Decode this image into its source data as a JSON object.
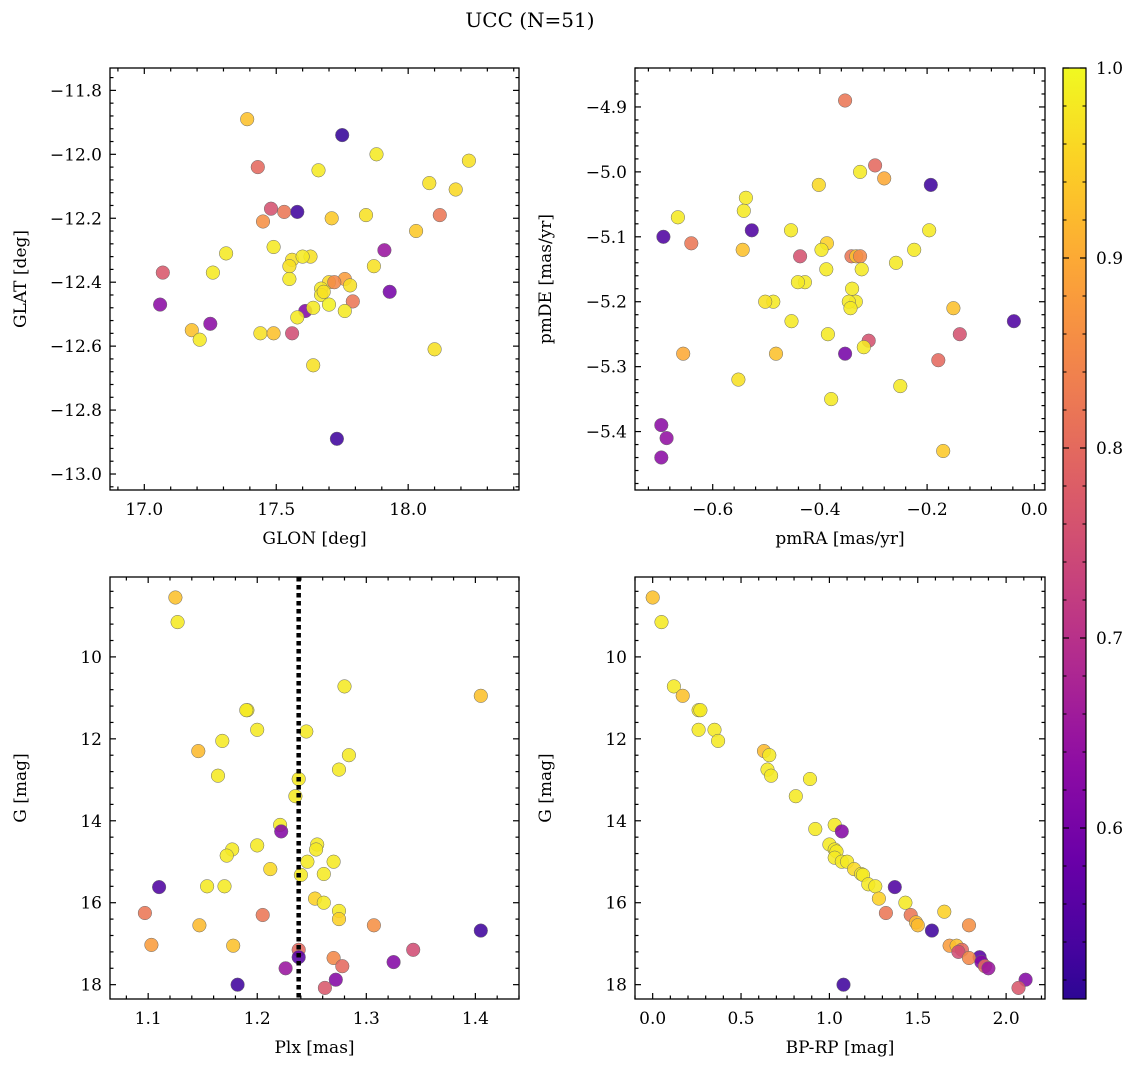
{
  "figure": {
    "title": "UCC (N=51)"
  },
  "colorbar": {
    "colormap": "plasma",
    "range": [
      0.51,
      1.0
    ],
    "ticks": [
      0.6,
      0.7,
      0.8,
      0.9,
      1.0
    ],
    "tick_labels": [
      "0.6",
      "0.7",
      "0.8",
      "0.9",
      "1.0"
    ]
  },
  "chart_data": [
    {
      "type": "scatter",
      "id": "glon-glat",
      "xlabel": "GLON [deg]",
      "ylabel": "GLAT [deg]",
      "xlim": [
        16.87,
        18.42
      ],
      "ylim": [
        -13.05,
        -11.73
      ],
      "y_inverted": false,
      "xticks": [
        17.0,
        17.5,
        18.0
      ],
      "xtick_labels": [
        "17.0",
        "17.5",
        "18.0"
      ],
      "yticks": [
        -11.8,
        -12.0,
        -12.2,
        -12.4,
        -12.6,
        -12.8,
        -13.0
      ],
      "ytick_labels": [
        "−11.8",
        "−12.0",
        "−12.2",
        "−12.4",
        "−12.6",
        "−12.8",
        "−13.0"
      ],
      "points": [
        [
          17.39,
          -11.89,
          0.93
        ],
        [
          17.75,
          -11.94,
          0.52
        ],
        [
          17.88,
          -12.0,
          0.98
        ],
        [
          17.43,
          -12.04,
          0.8
        ],
        [
          17.66,
          -12.05,
          0.98
        ],
        [
          18.23,
          -12.02,
          0.97
        ],
        [
          18.08,
          -12.09,
          0.97
        ],
        [
          18.18,
          -12.11,
          0.96
        ],
        [
          17.48,
          -12.17,
          0.76
        ],
        [
          17.53,
          -12.18,
          0.82
        ],
        [
          17.58,
          -12.18,
          0.53
        ],
        [
          17.45,
          -12.21,
          0.86
        ],
        [
          17.71,
          -12.2,
          0.94
        ],
        [
          17.84,
          -12.19,
          0.97
        ],
        [
          18.12,
          -12.19,
          0.82
        ],
        [
          18.03,
          -12.24,
          0.94
        ],
        [
          17.49,
          -12.29,
          0.98
        ],
        [
          17.63,
          -12.32,
          0.97
        ],
        [
          17.31,
          -12.31,
          0.98
        ],
        [
          17.91,
          -12.3,
          0.65
        ],
        [
          17.56,
          -12.33,
          0.97
        ],
        [
          17.55,
          -12.35,
          0.97
        ],
        [
          17.87,
          -12.35,
          0.97
        ],
        [
          17.07,
          -12.37,
          0.77
        ],
        [
          17.26,
          -12.37,
          0.98
        ],
        [
          17.7,
          -12.4,
          0.96
        ],
        [
          17.76,
          -12.39,
          0.88
        ],
        [
          17.72,
          -12.4,
          0.85
        ],
        [
          17.55,
          -12.39,
          0.98
        ],
        [
          17.67,
          -12.42,
          0.98
        ],
        [
          17.67,
          -12.44,
          0.98
        ],
        [
          17.93,
          -12.43,
          0.6
        ],
        [
          17.78,
          -12.41,
          0.97
        ],
        [
          17.06,
          -12.47,
          0.63
        ],
        [
          17.7,
          -12.47,
          0.99
        ],
        [
          17.79,
          -12.46,
          0.82
        ],
        [
          17.61,
          -12.49,
          0.62
        ],
        [
          17.64,
          -12.48,
          0.98
        ],
        [
          17.76,
          -12.49,
          0.98
        ],
        [
          17.58,
          -12.51,
          0.98
        ],
        [
          17.18,
          -12.55,
          0.93
        ],
        [
          17.44,
          -12.56,
          0.97
        ],
        [
          17.49,
          -12.56,
          0.93
        ],
        [
          17.56,
          -12.56,
          0.75
        ],
        [
          17.25,
          -12.53,
          0.63
        ],
        [
          17.21,
          -12.58,
          0.98
        ],
        [
          18.1,
          -12.61,
          0.97
        ],
        [
          17.64,
          -12.66,
          0.97
        ],
        [
          17.73,
          -12.89,
          0.53
        ],
        [
          17.68,
          -12.43,
          0.97
        ],
        [
          17.6,
          -12.32,
          0.98
        ]
      ]
    },
    {
      "type": "scatter",
      "id": "pmra-pmde",
      "xlabel": "pmRA [mas/yr]",
      "ylabel": "pmDE [mas/yr]",
      "xlim": [
        -0.745,
        0.02
      ],
      "ylim": [
        -5.49,
        -4.84
      ],
      "y_inverted": false,
      "xticks": [
        -0.6,
        -0.4,
        -0.2,
        0.0
      ],
      "xtick_labels": [
        "−0.6",
        "−0.4",
        "−0.2",
        "0.0"
      ],
      "yticks": [
        -4.9,
        -5.0,
        -5.1,
        -5.2,
        -5.3,
        -5.4
      ],
      "ytick_labels": [
        "−4.9",
        "−5.0",
        "−5.1",
        "−5.2",
        "−5.3",
        "−5.4"
      ],
      "points": [
        [
          -0.353,
          -4.89,
          0.82
        ],
        [
          -0.297,
          -4.99,
          0.8
        ],
        [
          -0.325,
          -5.0,
          0.98
        ],
        [
          -0.28,
          -5.01,
          0.9
        ],
        [
          -0.193,
          -5.02,
          0.53
        ],
        [
          -0.402,
          -5.02,
          0.96
        ],
        [
          -0.538,
          -5.04,
          0.98
        ],
        [
          -0.542,
          -5.06,
          0.98
        ],
        [
          -0.665,
          -5.07,
          0.98
        ],
        [
          -0.527,
          -5.09,
          0.55
        ],
        [
          -0.454,
          -5.09,
          0.98
        ],
        [
          -0.692,
          -5.1,
          0.55
        ],
        [
          -0.196,
          -5.09,
          0.98
        ],
        [
          -0.64,
          -5.11,
          0.82
        ],
        [
          -0.387,
          -5.11,
          0.95
        ],
        [
          -0.397,
          -5.12,
          0.98
        ],
        [
          -0.544,
          -5.12,
          0.93
        ],
        [
          -0.224,
          -5.12,
          0.98
        ],
        [
          -0.341,
          -5.13,
          0.82
        ],
        [
          -0.332,
          -5.13,
          0.93
        ],
        [
          -0.325,
          -5.13,
          0.85
        ],
        [
          -0.437,
          -5.13,
          0.76
        ],
        [
          -0.258,
          -5.14,
          0.98
        ],
        [
          -0.322,
          -5.15,
          0.98
        ],
        [
          -0.388,
          -5.15,
          0.98
        ],
        [
          -0.428,
          -5.17,
          0.98
        ],
        [
          -0.441,
          -5.17,
          0.98
        ],
        [
          -0.34,
          -5.18,
          0.98
        ],
        [
          -0.333,
          -5.2,
          0.98
        ],
        [
          -0.346,
          -5.2,
          0.98
        ],
        [
          -0.343,
          -5.21,
          0.98
        ],
        [
          -0.487,
          -5.2,
          0.98
        ],
        [
          -0.502,
          -5.2,
          0.97
        ],
        [
          -0.151,
          -5.21,
          0.93
        ],
        [
          -0.038,
          -5.23,
          0.55
        ],
        [
          -0.453,
          -5.23,
          0.98
        ],
        [
          -0.139,
          -5.25,
          0.76
        ],
        [
          -0.385,
          -5.25,
          0.98
        ],
        [
          -0.309,
          -5.26,
          0.76
        ],
        [
          -0.318,
          -5.27,
          0.98
        ],
        [
          -0.353,
          -5.28,
          0.6
        ],
        [
          -0.482,
          -5.28,
          0.93
        ],
        [
          -0.655,
          -5.28,
          0.9
        ],
        [
          -0.179,
          -5.29,
          0.8
        ],
        [
          -0.25,
          -5.33,
          0.98
        ],
        [
          -0.552,
          -5.32,
          0.97
        ],
        [
          -0.379,
          -5.35,
          0.98
        ],
        [
          -0.696,
          -5.39,
          0.63
        ],
        [
          -0.686,
          -5.41,
          0.64
        ],
        [
          -0.696,
          -5.44,
          0.63
        ],
        [
          -0.17,
          -5.43,
          0.94
        ]
      ]
    },
    {
      "type": "scatter",
      "id": "plx-g",
      "xlabel": "Plx [mas]",
      "ylabel": "G [mag]",
      "xlim": [
        1.065,
        1.44
      ],
      "ylim": [
        18.35,
        8.05
      ],
      "y_inverted": true,
      "reference_line_x": 1.238,
      "xticks": [
        1.1,
        1.2,
        1.3,
        1.4
      ],
      "xtick_labels": [
        "1.1",
        "1.2",
        "1.3",
        "1.4"
      ],
      "yticks": [
        10,
        12,
        14,
        16,
        18
      ],
      "ytick_labels": [
        "10",
        "12",
        "14",
        "16",
        "18"
      ],
      "points": [
        [
          1.125,
          8.55,
          0.93
        ],
        [
          1.127,
          9.15,
          0.98
        ],
        [
          1.405,
          10.95,
          0.93
        ],
        [
          1.28,
          10.72,
          0.98
        ],
        [
          1.191,
          11.3,
          0.98
        ],
        [
          1.2,
          11.78,
          0.98
        ],
        [
          1.245,
          11.82,
          0.98
        ],
        [
          1.146,
          12.3,
          0.92
        ],
        [
          1.168,
          12.05,
          0.98
        ],
        [
          1.284,
          12.4,
          0.98
        ],
        [
          1.275,
          12.75,
          0.98
        ],
        [
          1.164,
          12.9,
          0.98
        ],
        [
          1.238,
          12.98,
          0.98
        ],
        [
          1.235,
          13.4,
          0.98
        ],
        [
          1.221,
          14.1,
          0.98
        ],
        [
          1.222,
          14.26,
          0.62
        ],
        [
          1.255,
          14.58,
          0.98
        ],
        [
          1.2,
          14.6,
          0.98
        ],
        [
          1.254,
          14.7,
          0.98
        ],
        [
          1.177,
          14.7,
          0.98
        ],
        [
          1.172,
          14.85,
          0.98
        ],
        [
          1.246,
          15.0,
          0.98
        ],
        [
          1.27,
          15.0,
          0.98
        ],
        [
          1.212,
          15.18,
          0.96
        ],
        [
          1.24,
          15.32,
          0.98
        ],
        [
          1.261,
          15.3,
          0.98
        ],
        [
          1.154,
          15.6,
          0.98
        ],
        [
          1.17,
          15.6,
          0.98
        ],
        [
          1.11,
          15.62,
          0.55
        ],
        [
          1.253,
          15.9,
          0.95
        ],
        [
          1.261,
          16.0,
          0.98
        ],
        [
          1.275,
          16.2,
          0.98
        ],
        [
          1.275,
          16.4,
          0.95
        ],
        [
          1.097,
          16.25,
          0.82
        ],
        [
          1.205,
          16.3,
          0.82
        ],
        [
          1.147,
          16.55,
          0.92
        ],
        [
          1.307,
          16.55,
          0.86
        ],
        [
          1.405,
          16.68,
          0.53
        ],
        [
          1.103,
          17.03,
          0.88
        ],
        [
          1.178,
          17.05,
          0.93
        ],
        [
          1.238,
          17.15,
          0.8
        ],
        [
          1.343,
          17.15,
          0.75
        ],
        [
          1.238,
          17.33,
          0.56
        ],
        [
          1.27,
          17.35,
          0.85
        ],
        [
          1.325,
          17.45,
          0.62
        ],
        [
          1.278,
          17.55,
          0.8
        ],
        [
          1.226,
          17.6,
          0.65
        ],
        [
          1.272,
          17.88,
          0.62
        ],
        [
          1.182,
          18.0,
          0.53
        ],
        [
          1.262,
          18.08,
          0.77
        ],
        [
          1.19,
          11.3,
          0.98
        ]
      ]
    },
    {
      "type": "scatter",
      "id": "bprp-g",
      "xlabel": "BP-RP [mag]",
      "ylabel": "G [mag]",
      "xlim": [
        -0.1,
        2.22
      ],
      "ylim": [
        18.35,
        8.05
      ],
      "y_inverted": true,
      "xticks": [
        0.0,
        0.5,
        1.0,
        1.5,
        2.0
      ],
      "xtick_labels": [
        "0.0",
        "0.5",
        "1.0",
        "1.5",
        "2.0"
      ],
      "yticks": [
        10,
        12,
        14,
        16,
        18
      ],
      "ytick_labels": [
        "10",
        "12",
        "14",
        "16",
        "18"
      ],
      "points": [
        [
          0.0,
          8.55,
          0.93
        ],
        [
          0.05,
          9.15,
          0.98
        ],
        [
          0.12,
          10.72,
          0.98
        ],
        [
          0.17,
          10.95,
          0.93
        ],
        [
          0.26,
          11.3,
          0.98
        ],
        [
          0.26,
          11.78,
          0.98
        ],
        [
          0.35,
          11.78,
          0.98
        ],
        [
          0.37,
          12.05,
          0.98
        ],
        [
          0.63,
          12.3,
          0.92
        ],
        [
          0.66,
          12.4,
          0.98
        ],
        [
          0.65,
          12.75,
          0.98
        ],
        [
          0.67,
          12.9,
          0.98
        ],
        [
          0.89,
          12.98,
          0.98
        ],
        [
          0.81,
          13.4,
          0.98
        ],
        [
          0.92,
          14.2,
          0.98
        ],
        [
          1.03,
          14.1,
          0.98
        ],
        [
          1.07,
          14.26,
          0.62
        ],
        [
          1.0,
          14.58,
          0.98
        ],
        [
          1.03,
          14.7,
          0.98
        ],
        [
          1.04,
          14.75,
          0.98
        ],
        [
          1.03,
          14.9,
          0.98
        ],
        [
          1.07,
          15.0,
          0.98
        ],
        [
          1.1,
          15.0,
          0.98
        ],
        [
          1.14,
          15.18,
          0.96
        ],
        [
          1.18,
          15.3,
          0.98
        ],
        [
          1.19,
          15.32,
          0.98
        ],
        [
          1.22,
          15.55,
          0.98
        ],
        [
          1.26,
          15.6,
          0.98
        ],
        [
          1.37,
          15.62,
          0.55
        ],
        [
          1.28,
          15.9,
          0.95
        ],
        [
          1.43,
          16.0,
          0.98
        ],
        [
          1.32,
          16.25,
          0.82
        ],
        [
          1.65,
          16.22,
          0.95
        ],
        [
          1.46,
          16.3,
          0.82
        ],
        [
          1.49,
          16.48,
          0.92
        ],
        [
          1.5,
          16.55,
          0.92
        ],
        [
          1.79,
          16.55,
          0.86
        ],
        [
          1.58,
          16.68,
          0.53
        ],
        [
          1.68,
          17.05,
          0.88
        ],
        [
          1.72,
          17.05,
          0.93
        ],
        [
          1.75,
          17.15,
          0.8
        ],
        [
          1.73,
          17.2,
          0.75
        ],
        [
          1.85,
          17.33,
          0.56
        ],
        [
          1.79,
          17.35,
          0.85
        ],
        [
          1.86,
          17.45,
          0.62
        ],
        [
          1.88,
          17.55,
          0.8
        ],
        [
          1.9,
          17.6,
          0.65
        ],
        [
          2.11,
          17.88,
          0.62
        ],
        [
          1.08,
          18.0,
          0.53
        ],
        [
          2.07,
          18.08,
          0.77
        ],
        [
          0.27,
          11.3,
          0.98
        ]
      ]
    }
  ]
}
